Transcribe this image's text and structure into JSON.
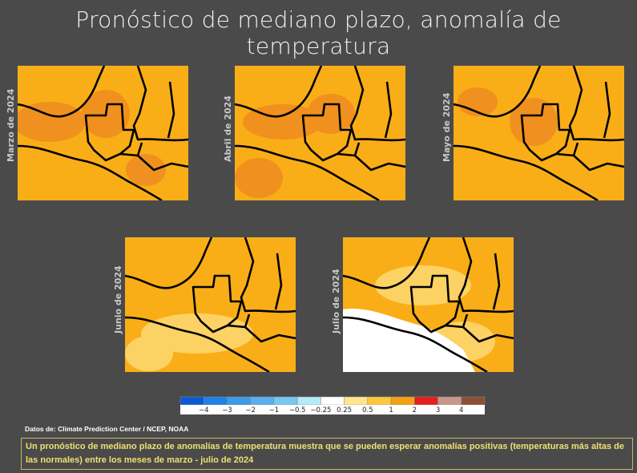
{
  "title": "Pronóstico de mediano plazo, anomalía de temperatura",
  "panels": [
    {
      "label": "Marzo de 2024"
    },
    {
      "label": "Abril de 2024"
    },
    {
      "label": "Mayo de 2024"
    },
    {
      "label": "Junio de 2024"
    },
    {
      "label": "Julio de 2024"
    }
  ],
  "colorbar": {
    "labels": [
      "−4",
      "−3",
      "−2",
      "−1",
      "−0.5",
      "−0.25",
      "0.25",
      "0.5",
      "1",
      "2",
      "3",
      "4"
    ],
    "colors": [
      "#0a5ad2",
      "#1e82e6",
      "#3c9be6",
      "#5aaff0",
      "#78c8f0",
      "#b4ebfa",
      "#ffffff",
      "#ffe68c",
      "#ffc83c",
      "#f5a014",
      "#e61e1e",
      "#c8968c",
      "#8c5032"
    ]
  },
  "source": "Datos de:  Climate Prediction Center / NCEP, NOAA",
  "caption": "Un pronóstico de mediano plazo de anomalías de  temperatura muestra que se pueden esperar anomalías positivas (temperaturas más altas de las normales) entre los meses de marzo - julio de 2024"
}
